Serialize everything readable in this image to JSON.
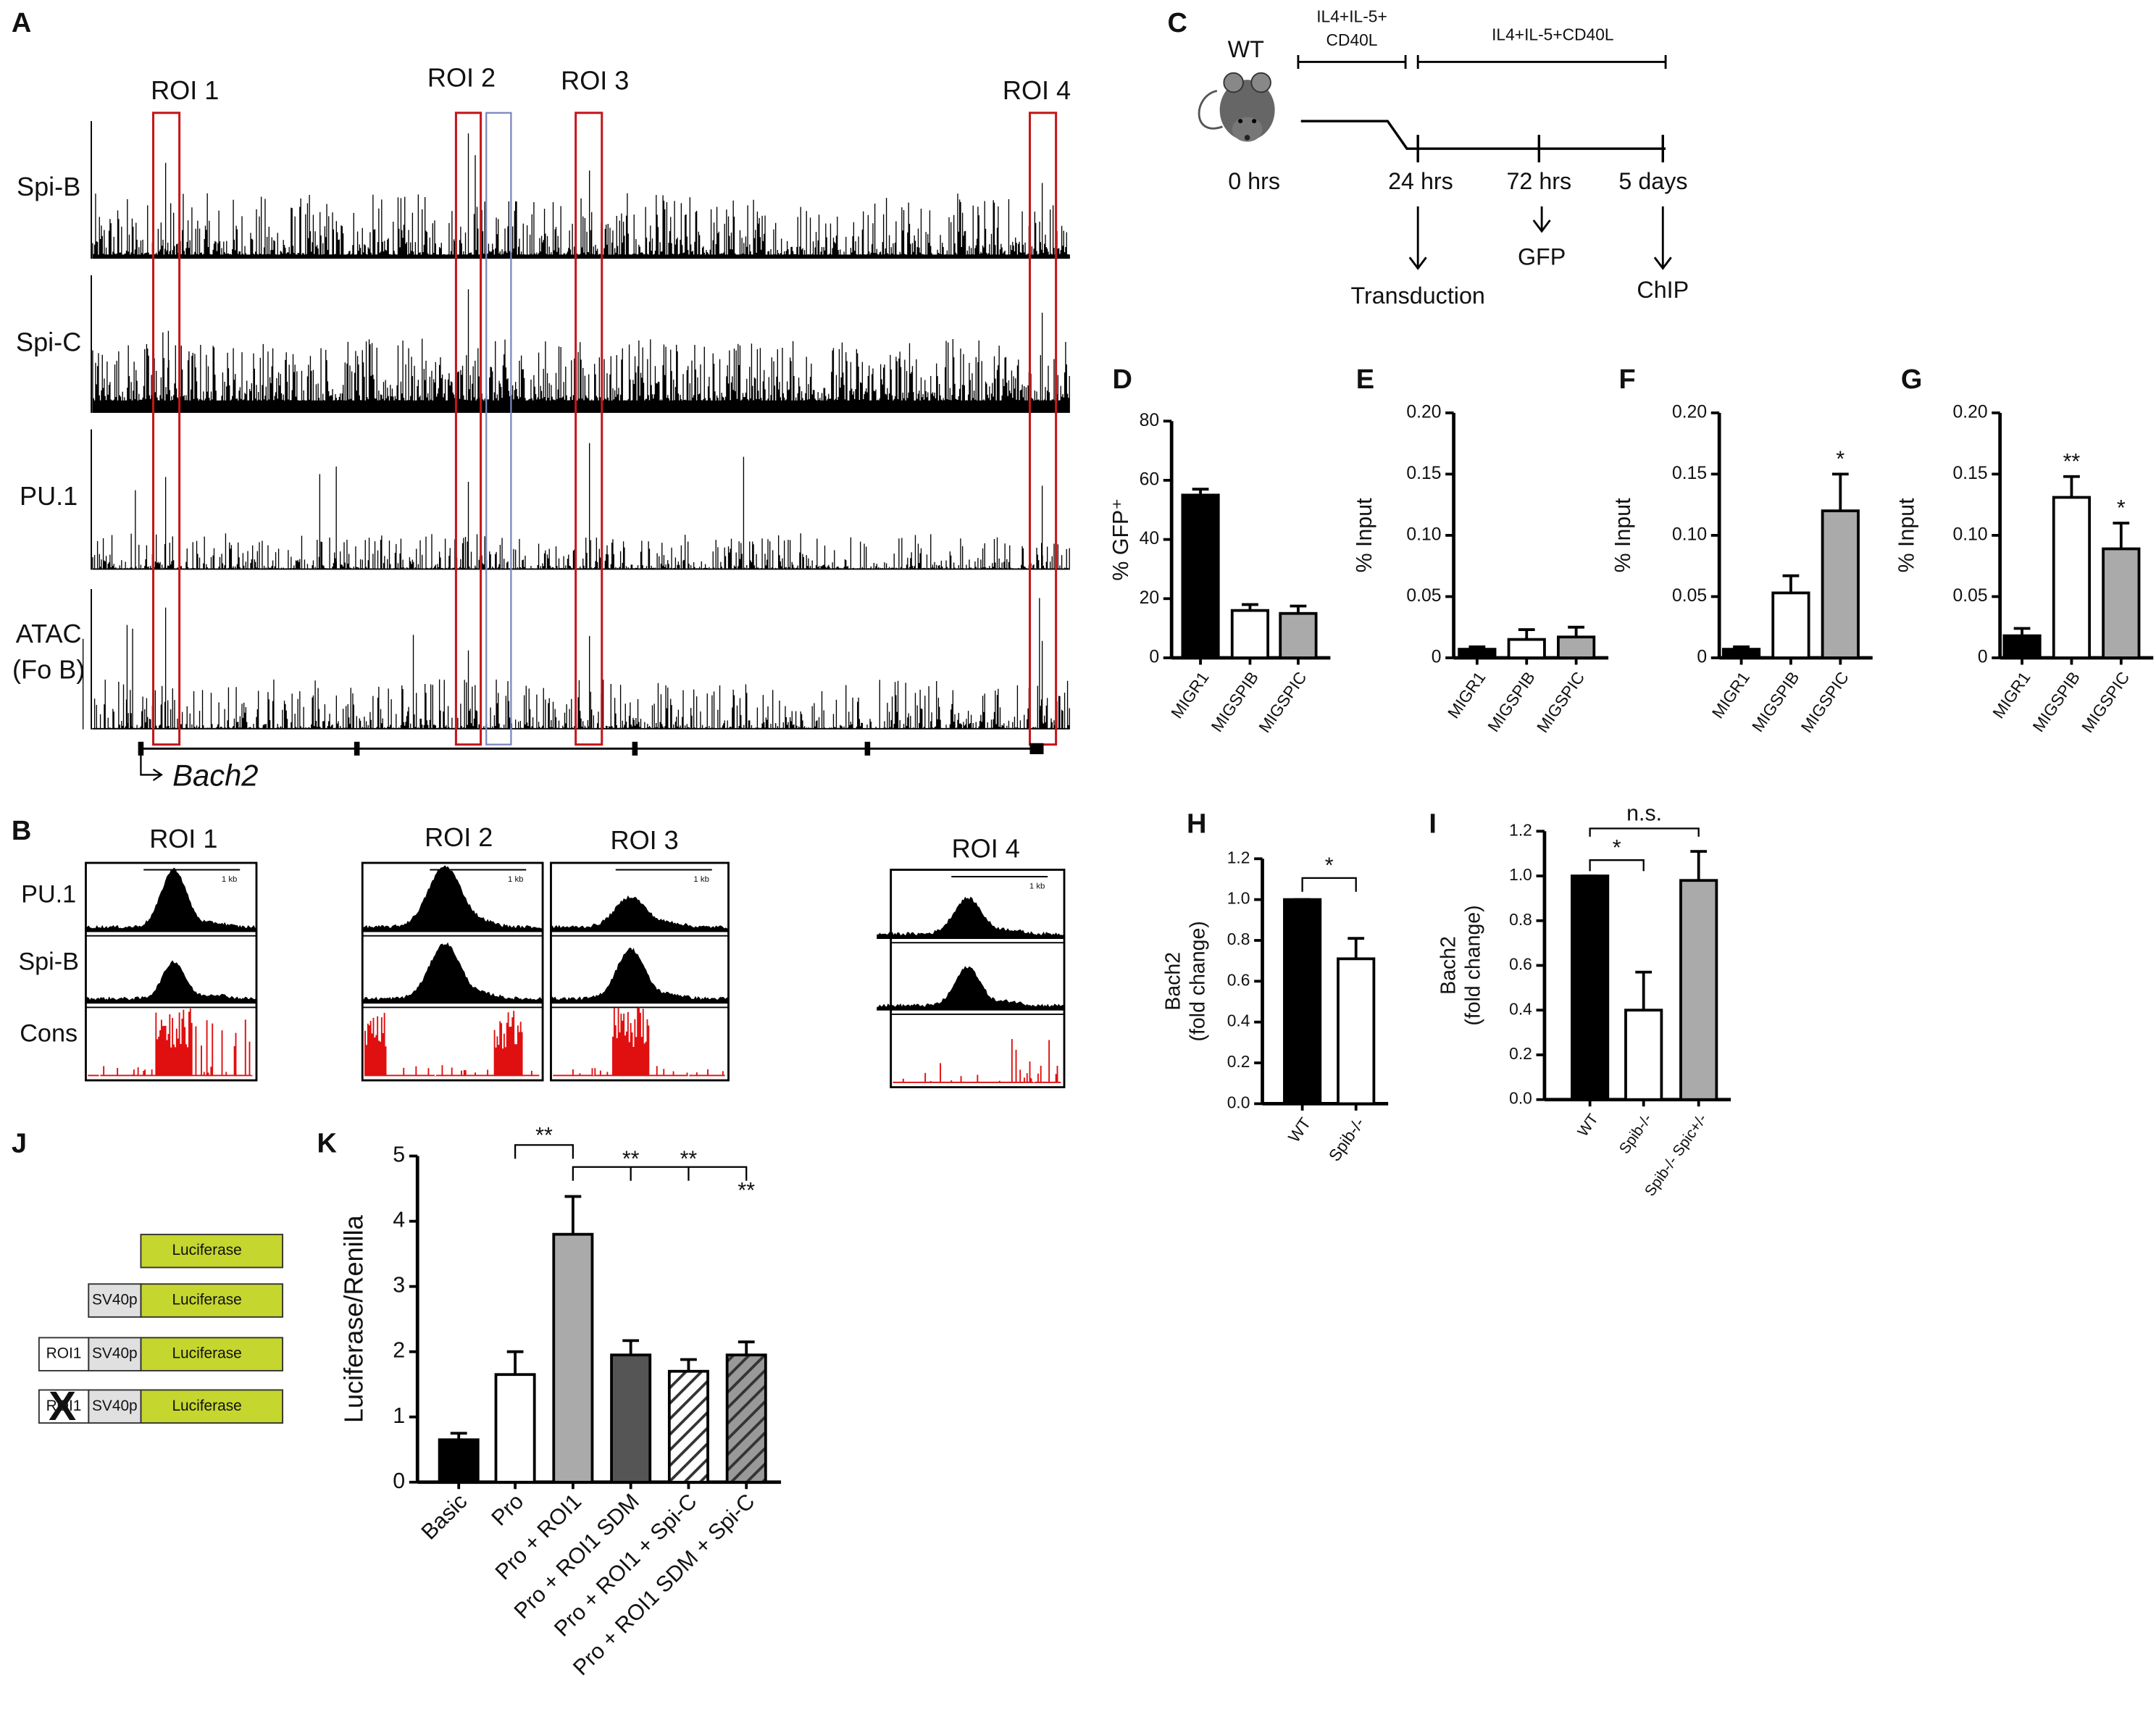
{
  "panel_a": {
    "label": "A",
    "roi_labels": [
      "ROI 1",
      "ROI 2",
      "ROI 3",
      "ROI 4"
    ],
    "tracks": [
      "Spi-B",
      "Spi-C",
      "PU.1",
      "ATAC"
    ],
    "atac_sample": "(Fo B)",
    "gene": "Bach2"
  },
  "panel_b": {
    "label": "B",
    "roi_labels": [
      "ROI 1",
      "ROI 2",
      "ROI 3",
      "ROI 4"
    ],
    "rows": [
      "PU.1",
      "Spi-B",
      "Cons"
    ],
    "scale": "1 kb"
  },
  "panel_c": {
    "label": "C",
    "strain": "WT",
    "treatment_1": [
      "IL4+IL-5+",
      "CD40L"
    ],
    "treatment_2": "IL4+IL-5+CD40L",
    "times": [
      "0 hrs",
      "24 hrs",
      "72 hrs",
      "5 days"
    ],
    "steps": [
      "Transduction",
      "GFP",
      "ChIP"
    ]
  },
  "panel_j": {
    "label": "J",
    "reporter": "Luciferase",
    "promoter": "SV40p",
    "element": "ROI1",
    "mutation": "X"
  },
  "chart_data": [
    {
      "type": "bar",
      "panel_label": "D",
      "ylabel": [
        "% GFP⁺"
      ],
      "categories": [
        "MIGR1",
        "MIGSPIB",
        "MIGSPIC"
      ],
      "values": [
        55,
        16,
        15
      ],
      "errors": [
        2,
        2,
        2.5
      ],
      "colors": [
        "#000000",
        "#ffffff",
        "#aaaaaa"
      ],
      "ylim": [
        0,
        80
      ],
      "yticks": [
        0,
        20,
        40,
        60,
        80
      ]
    },
    {
      "type": "bar",
      "panel_label": "E",
      "ylabel": [
        "% Input"
      ],
      "categories": [
        "MIGR1",
        "MIGSPIB",
        "MIGSPIC"
      ],
      "values": [
        0.007,
        0.015,
        0.017
      ],
      "errors": [
        0.002,
        0.008,
        0.008
      ],
      "colors": [
        "#000000",
        "#ffffff",
        "#aaaaaa"
      ],
      "ylim": [
        0,
        0.2
      ],
      "yticks": [
        0,
        0.05,
        {
          "value": 0.1,
          "label": "0.10"
        },
        0.15,
        {
          "value": 0.2,
          "label": "0.20"
        }
      ]
    },
    {
      "type": "bar",
      "panel_label": "F",
      "ylabel": [
        "% Input"
      ],
      "categories": [
        "MIGR1",
        "MIGSPIB",
        "MIGSPIC"
      ],
      "values": [
        0.007,
        0.053,
        0.12
      ],
      "errors": [
        0.002,
        0.014,
        0.03
      ],
      "colors": [
        "#000000",
        "#ffffff",
        "#aaaaaa"
      ],
      "ylim": [
        0,
        0.2
      ],
      "yticks": [
        0,
        0.05,
        {
          "value": 0.1,
          "label": "0.10"
        },
        0.15,
        {
          "value": 0.2,
          "label": "0.20"
        }
      ],
      "annotations": [
        "*"
      ]
    },
    {
      "type": "bar",
      "panel_label": "G",
      "ylabel": [
        "% Input"
      ],
      "categories": [
        "MIGR1",
        "MIGSPIB",
        "MIGSPIC"
      ],
      "values": [
        0.018,
        0.131,
        0.089
      ],
      "errors": [
        0.006,
        0.017,
        0.021
      ],
      "colors": [
        "#000000",
        "#ffffff",
        "#aaaaaa"
      ],
      "ylim": [
        0,
        0.2
      ],
      "yticks": [
        0,
        0.05,
        {
          "value": 0.1,
          "label": "0.10"
        },
        0.15,
        {
          "value": 0.2,
          "label": "0.20"
        }
      ],
      "annotations": [
        "**",
        "*"
      ]
    },
    {
      "type": "bar",
      "panel_label": "H",
      "ylabel": [
        "Bach2",
        "(fold change)"
      ],
      "categories": [
        "WT",
        "Spib-/-"
      ],
      "values": [
        1.0,
        0.71
      ],
      "errors": [
        0,
        0.1
      ],
      "colors": [
        "#000000",
        "#ffffff"
      ],
      "ylim": [
        0,
        1.2
      ],
      "yticks": [
        {
          "value": 0,
          "label": "0.0"
        },
        0.2,
        0.4,
        0.6,
        0.8,
        {
          "value": 1,
          "label": "1.0"
        },
        1.2
      ],
      "annotations": [
        "*"
      ]
    },
    {
      "type": "bar",
      "panel_label": "I",
      "ylabel": [
        "Bach2",
        "(fold change)"
      ],
      "categories": [
        "WT",
        "Spib-/-",
        "Spib-/- Spic+/-"
      ],
      "values": [
        1.0,
        0.4,
        0.98
      ],
      "errors": [
        0,
        0.17,
        0.13
      ],
      "colors": [
        "#000000",
        "#ffffff",
        "#aaaaaa"
      ],
      "ylim": [
        0,
        1.2
      ],
      "yticks": [
        {
          "value": 0,
          "label": "0.0"
        },
        0.2,
        0.4,
        0.6,
        0.8,
        {
          "value": 1,
          "label": "1.0"
        },
        1.2
      ],
      "annotations": [
        "*",
        "n.s."
      ]
    },
    {
      "type": "bar",
      "panel_label": "K",
      "ylabel": [
        "Luciferase/Renilla"
      ],
      "categories": [
        "Basic",
        "Pro",
        "Pro + ROI1",
        "Pro + ROI1 SDM",
        "Pro + ROI1 + Spi-C",
        "Pro + ROI1 SDM + Spi-C"
      ],
      "values": [
        0.65,
        1.65,
        3.8,
        1.95,
        1.7,
        1.95
      ],
      "errors": [
        0.1,
        0.35,
        0.58,
        0.22,
        0.18,
        0.2
      ],
      "colors": [
        "#000000",
        "#ffffff",
        "#aaaaaa",
        "#555555",
        "#ffffff",
        "#999999"
      ],
      "hatch": [
        false,
        false,
        false,
        false,
        true,
        true
      ],
      "ylim": [
        0,
        5
      ],
      "yticks": [
        0,
        1,
        2,
        3,
        4,
        5
      ],
      "annotations": [
        "**",
        "**",
        "**",
        "**"
      ]
    }
  ]
}
